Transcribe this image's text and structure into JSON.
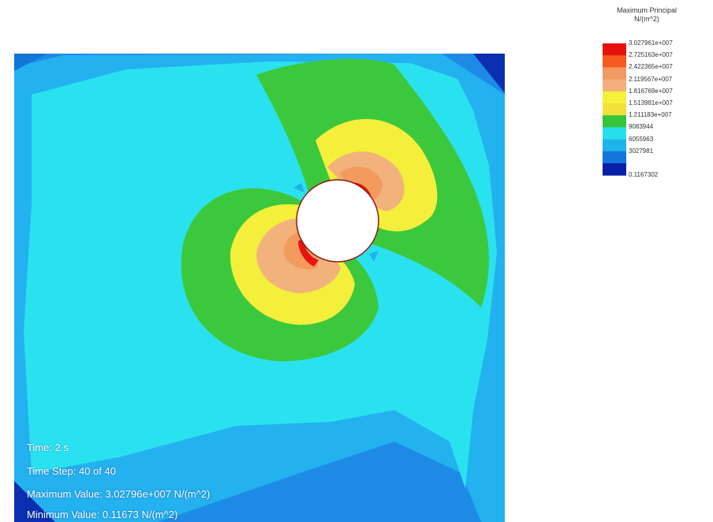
{
  "legend": {
    "title_line1": "Maximum Principal",
    "title_line2": "N/(m^2)",
    "colors": [
      "#e8120c",
      "#f55a1e",
      "#f29a62",
      "#f2b07c",
      "#f5f03a",
      "#f2e03c",
      "#36c43c",
      "#27dfe8",
      "#1fb3ec",
      "#1476d8",
      "#0a1fa8"
    ],
    "labels": [
      "3.027961e+007",
      "2.725163e+007",
      "2.422365e+007",
      "2.119567e+007",
      "1.816769e+007",
      "1.513981e+007",
      "1.211183e+007",
      "9083944",
      "6055963",
      "3027981",
      "0.1167302"
    ]
  },
  "info": {
    "time": "Time: 2 s",
    "time_step": "Time Step:  40 of 40",
    "max_value": "Maximum Value:  3.02796e+007 N/(m^2)",
    "min_value": "Minimum Value:  0.11673 N/(m^2)"
  }
}
